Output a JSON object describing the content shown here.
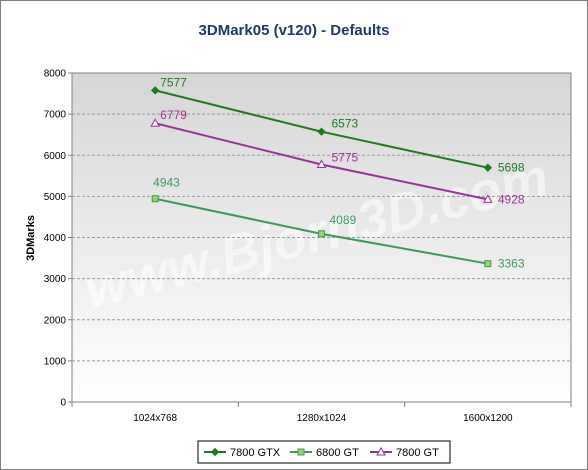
{
  "chart_data": {
    "type": "line",
    "title": "3DMark05 (v120) - Defaults",
    "ylabel": "3DMarks",
    "xlabel": "",
    "categories": [
      "1024x768",
      "1280x1024",
      "1600x1200"
    ],
    "ylim": [
      0,
      8000
    ],
    "yticks": [
      0,
      1000,
      2000,
      3000,
      4000,
      5000,
      6000,
      7000,
      8000
    ],
    "grid": true,
    "legend": "bottom",
    "watermark": "www.Bjorn3D.com",
    "series": [
      {
        "name": "7800 GTX",
        "values": [
          7577,
          6573,
          5698
        ],
        "color": "#1f7a1f",
        "marker": "diamond"
      },
      {
        "name": "6800 GT",
        "values": [
          4943,
          4089,
          3363
        ],
        "color": "#3a9a5a",
        "marker": "square"
      },
      {
        "name": "7800 GT",
        "values": [
          6779,
          5775,
          4928
        ],
        "color": "#993399",
        "marker": "triangle"
      }
    ]
  }
}
